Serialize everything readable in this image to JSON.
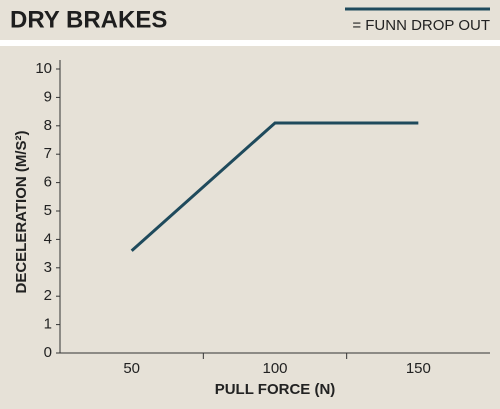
{
  "chart_data": {
    "type": "line",
    "title": "DRY BRAKES",
    "x_label": "PULL FORCE (N)",
    "y_label": "DECELERATION (M/S²)",
    "x": [
      50,
      100,
      150
    ],
    "series": [
      {
        "name": "= FUNN DROP OUT",
        "color": "#1f4a5c",
        "values": [
          3.6,
          8.1,
          8.1
        ]
      }
    ],
    "xlim": [
      25,
      175
    ],
    "xticks": [
      50,
      100,
      150
    ],
    "xminorticks": [
      75,
      125
    ],
    "ylim": [
      0,
      10
    ],
    "yticks": [
      0,
      1,
      2,
      3,
      4,
      5,
      6,
      7,
      8,
      9,
      10
    ],
    "grid": false,
    "legend": "top-right"
  }
}
